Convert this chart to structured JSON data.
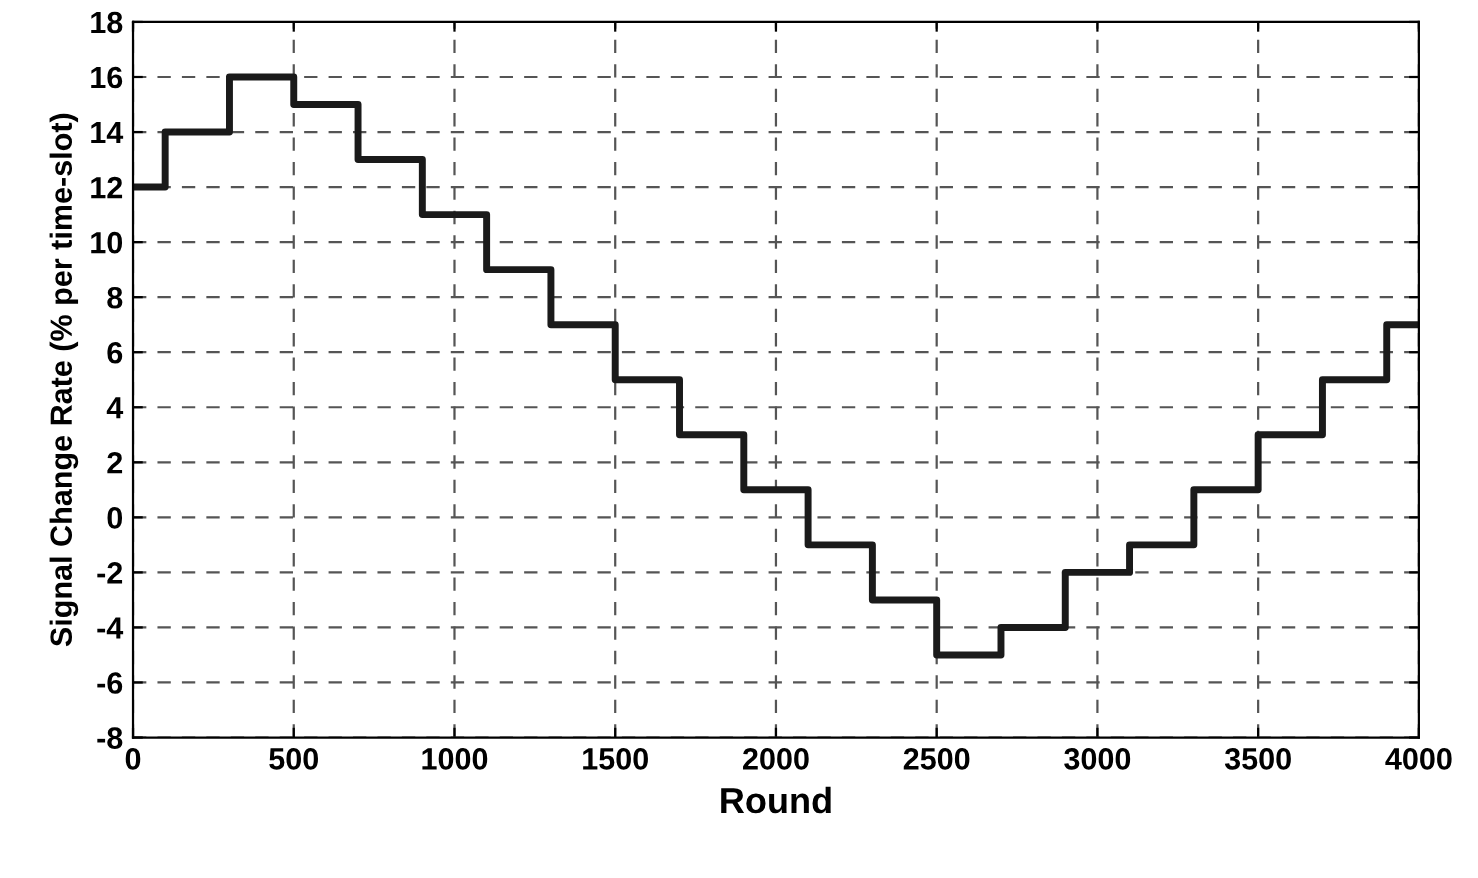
{
  "chart_data": {
    "type": "step",
    "xlabel": "Round",
    "ylabel": "Signal Change Rate (% per time-slot)",
    "x": [
      0,
      100,
      300,
      500,
      700,
      900,
      1100,
      1300,
      1500,
      1700,
      1900,
      2100,
      2300,
      2500,
      2700,
      2900,
      3100,
      3300,
      3500,
      3700,
      3900,
      4000
    ],
    "series": [
      {
        "color": "#1a1a1a",
        "values": [
          12,
          14,
          16,
          15,
          13,
          11,
          9,
          7,
          5,
          3,
          1,
          -1,
          -3,
          -5,
          -4,
          -2,
          -1,
          1,
          3,
          5,
          7,
          7
        ]
      }
    ],
    "xlim": [
      0,
      4000
    ],
    "xticks": [
      0,
      500,
      1000,
      1500,
      2000,
      2500,
      3000,
      3500,
      4000
    ],
    "ylim": [
      -8,
      18
    ],
    "yticks": [
      -8,
      -6,
      -4,
      -2,
      0,
      2,
      4,
      6,
      8,
      10,
      12,
      14,
      16,
      18
    ],
    "grid": true,
    "line_style": "solid",
    "marker": "none",
    "legend": false
  }
}
